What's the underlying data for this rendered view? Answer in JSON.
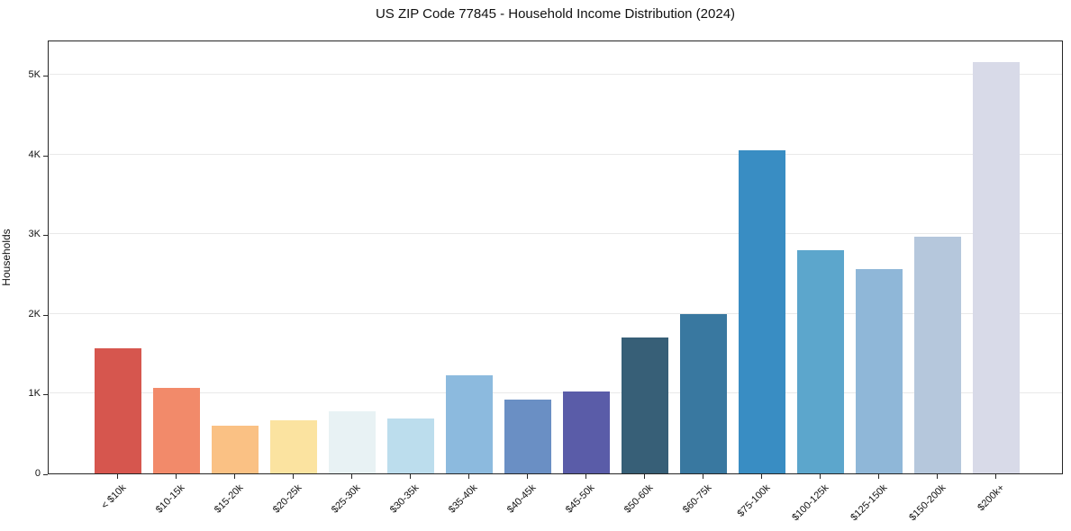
{
  "chart_data": {
    "type": "bar",
    "title": "US ZIP Code 77845 - Household Income Distribution (2024)",
    "xlabel": "",
    "ylabel": "Households",
    "categories": [
      "< $10k",
      "$10-15k",
      "$15-20k",
      "$20-25k",
      "$25-30k",
      "$30-35k",
      "$35-40k",
      "$40-45k",
      "$45-50k",
      "$50-60k",
      "$60-75k",
      "$75-100k",
      "$100-125k",
      "$125-150k",
      "$150-200k",
      "$200k+"
    ],
    "values": [
      1570,
      1070,
      600,
      670,
      780,
      685,
      1225,
      930,
      1030,
      1710,
      2000,
      4050,
      2800,
      2565,
      2970,
      5160
    ],
    "bar_colors": [
      "#d6564e",
      "#f28a6a",
      "#fac184",
      "#fbe3a0",
      "#e8f2f4",
      "#bcdded",
      "#8cbade",
      "#6a8fc4",
      "#5a5ca8",
      "#375f77",
      "#3978a0",
      "#398dc3",
      "#5ca6cc",
      "#8fb7d8",
      "#b5c7dc",
      "#d8dae8"
    ],
    "ylim": [
      0,
      5440
    ],
    "ytick_values": [
      0,
      1000,
      2000,
      3000,
      4000,
      5000
    ],
    "ytick_labels": [
      "0",
      "1K",
      "2K",
      "3K",
      "4K",
      "5K"
    ],
    "grid": "horizontal",
    "legend": "none",
    "background_color": "#ffffff",
    "grid_color": "#e9e9e9",
    "axis_color": "#262626"
  }
}
